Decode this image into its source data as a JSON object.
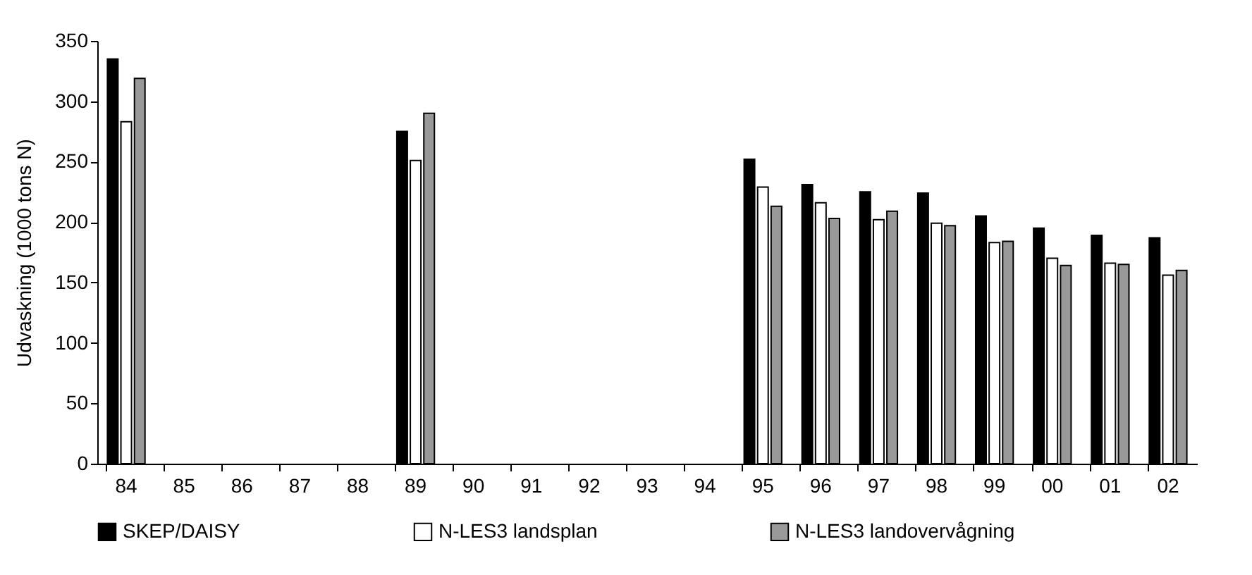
{
  "chart_data": {
    "type": "bar",
    "ylabel": "Udvaskning (1000 tons N)",
    "categories": [
      "84",
      "85",
      "86",
      "87",
      "88",
      "89",
      "90",
      "91",
      "92",
      "93",
      "94",
      "95",
      "96",
      "97",
      "98",
      "99",
      "00",
      "01",
      "02"
    ],
    "series": [
      {
        "name": "SKEP/DAISY",
        "color": "#000000",
        "values": [
          335,
          null,
          null,
          null,
          null,
          275,
          null,
          null,
          null,
          null,
          null,
          252,
          231,
          225,
          224,
          205,
          195,
          189,
          187
        ]
      },
      {
        "name": "N-LES3 landsplan",
        "color": "#ffffff",
        "values": [
          283,
          null,
          null,
          null,
          null,
          251,
          null,
          null,
          null,
          null,
          null,
          229,
          216,
          202,
          199,
          183,
          170,
          166,
          156
        ]
      },
      {
        "name": "N-LES3 landovervågning",
        "color": "#999999",
        "values": [
          319,
          null,
          null,
          null,
          null,
          290,
          null,
          null,
          null,
          null,
          null,
          213,
          203,
          209,
          197,
          184,
          164,
          165,
          160
        ]
      }
    ],
    "ylim": [
      0,
      350
    ],
    "yticks": [
      0,
      50,
      100,
      150,
      200,
      250,
      300,
      350
    ],
    "grid": false,
    "legend": "bottom"
  }
}
